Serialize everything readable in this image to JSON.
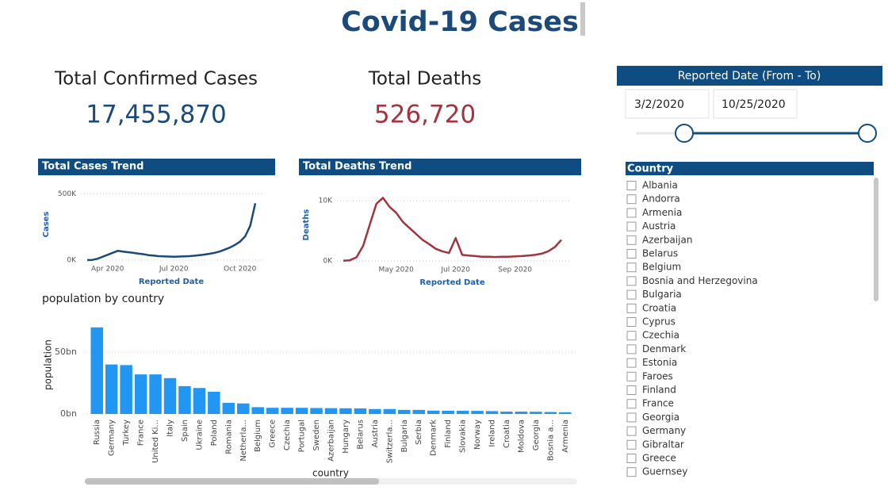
{
  "header": {
    "title": "Covid-19 Cases"
  },
  "kpis": [
    {
      "label": "Total Confirmed Cases",
      "value": "17,455,870"
    },
    {
      "label": "Total Deaths",
      "value": "526,720"
    }
  ],
  "date_slicer": {
    "title": "Reported Date (From - To)",
    "from": "3/2/2020",
    "to": "10/25/2020"
  },
  "country_slicer": {
    "title": "Country",
    "items": [
      "Albania",
      "Andorra",
      "Armenia",
      "Austria",
      "Azerbaijan",
      "Belarus",
      "Belgium",
      "Bosnia and Herzegovina",
      "Bulgaria",
      "Croatia",
      "Cyprus",
      "Czechia",
      "Denmark",
      "Estonia",
      "Faroes",
      "Finland",
      "France",
      "Georgia",
      "Germany",
      "Gibraltar",
      "Greece",
      "Guernsey"
    ]
  },
  "chart_data": [
    {
      "type": "line",
      "title": "Total Cases Trend",
      "x_label": "Reported Date",
      "y_label": "Cases",
      "color": "#1b4a7a",
      "categories": [
        null,
        null,
        null,
        null,
        "Apr 2020",
        null,
        null,
        null,
        null,
        null,
        null,
        null,
        null,
        null,
        null,
        null,
        null,
        "Jul 2020",
        null,
        null,
        null,
        null,
        null,
        null,
        null,
        null,
        null,
        null,
        null,
        null,
        "Oct 2020",
        null,
        null,
        null
      ],
      "values": [
        500,
        2000,
        10000,
        25000,
        40000,
        55000,
        70000,
        65000,
        60000,
        55000,
        50000,
        45000,
        38000,
        34000,
        30000,
        28000,
        27000,
        26000,
        27000,
        28000,
        30000,
        33000,
        37000,
        42000,
        48000,
        55000,
        65000,
        80000,
        95000,
        115000,
        140000,
        180000,
        260000,
        430000
      ],
      "ylim": [
        0,
        540000
      ],
      "yticks": [
        {
          "value": 0,
          "label": "0K"
        },
        {
          "value": 500000,
          "label": "500K"
        }
      ],
      "grid": true
    },
    {
      "type": "line",
      "title": "Total Deaths Trend",
      "x_label": "Reported Date",
      "y_label": "Deaths",
      "color": "#a3343f",
      "categories": [
        null,
        null,
        null,
        null,
        null,
        null,
        null,
        null,
        "May 2020",
        null,
        null,
        null,
        null,
        null,
        null,
        null,
        null,
        "Jul 2020",
        null,
        null,
        null,
        null,
        null,
        null,
        null,
        null,
        "Sep 2020",
        null,
        null,
        null,
        null,
        null,
        null,
        null
      ],
      "values": [
        20,
        100,
        600,
        2500,
        6000,
        9500,
        10500,
        9000,
        8000,
        6500,
        5500,
        4500,
        3500,
        2800,
        2000,
        1600,
        1300,
        3800,
        1000,
        900,
        800,
        700,
        700,
        650,
        700,
        700,
        750,
        800,
        900,
        1000,
        1200,
        1600,
        2300,
        3500
      ],
      "ylim": [
        0,
        12000
      ],
      "yticks": [
        {
          "value": 0,
          "label": "0K"
        },
        {
          "value": 10000,
          "label": "10K"
        }
      ],
      "grid": true
    },
    {
      "type": "bar",
      "title": "population by country",
      "x_label": "country",
      "y_label": "population",
      "color": "#2196f3",
      "categories": [
        "Russia",
        "Germany",
        "Turkey",
        "France",
        "United Ki...",
        "Italy",
        "Spain",
        "Ukraine",
        "Poland",
        "Romania",
        "Netherla...",
        "Belgium",
        "Greece",
        "Czechia",
        "Portugal",
        "Sweden",
        "Azerbaijan",
        "Hungary",
        "Belarus",
        "Austria",
        "Switzerla...",
        "Bulgaria",
        "Serbia",
        "Denmark",
        "Finland",
        "Slovakia",
        "Norway",
        "Ireland",
        "Croatia",
        "Moldova",
        "Georgia",
        "Bosnia a...",
        "Armenia"
      ],
      "values": [
        70000000000,
        40000000000,
        39500000000,
        32000000000,
        32000000000,
        29000000000,
        22500000000,
        21000000000,
        18000000000,
        9000000000,
        8500000000,
        5500000000,
        5000000000,
        5000000000,
        5000000000,
        4800000000,
        4700000000,
        4600000000,
        4500000000,
        4000000000,
        4000000000,
        3300000000,
        3300000000,
        2700000000,
        2600000000,
        2600000000,
        2500000000,
        2300000000,
        1900000000,
        1900000000,
        1800000000,
        1600000000,
        1400000000
      ],
      "ylim": [
        0,
        75000000000
      ],
      "yticks": [
        {
          "value": 0,
          "label": "0bn"
        },
        {
          "value": 50000000000,
          "label": "50bn"
        }
      ],
      "grid": true
    }
  ]
}
